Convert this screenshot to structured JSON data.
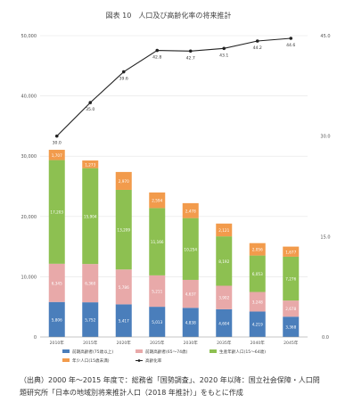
{
  "chart_data": {
    "type": "bar",
    "title": "図表 10　人口及び高齢化率の将来推計",
    "categories": [
      "2010年",
      "2015年",
      "2020年",
      "2025年",
      "2030年",
      "2035年",
      "2040年",
      "2045年"
    ],
    "series": [
      {
        "name": "前期高齢者(75歳以上)",
        "color": "#4a7ebb",
        "values": [
          5806,
          5752,
          5417,
          5013,
          4838,
          4604,
          4219,
          3368
        ]
      },
      {
        "name": "前期高齢者(65～74歳)",
        "color": "#e8a9a9",
        "values": [
          6345,
          6360,
          5786,
          5211,
          4637,
          3902,
          3248,
          2678
        ]
      },
      {
        "name": "生産年齢人口(15～64歳)",
        "color": "#8dc051",
        "values": [
          17203,
          15904,
          13209,
          11166,
          10254,
          8192,
          6053,
          7276
        ]
      },
      {
        "name": "年少人口(15歳未満)",
        "color": "#f29b4c",
        "values": [
          1707,
          1273,
          2970,
          2594,
          2478,
          2121,
          2056,
          1677
        ]
      },
      {
        "name": "高齢化率",
        "color": "#222222",
        "type": "line",
        "values": [
          30.0,
          35.0,
          39.6,
          42.8,
          42.7,
          43.1,
          44.2,
          44.6
        ]
      }
    ],
    "ylim_left": [
      0,
      50000
    ],
    "ylim_right": [
      0,
      45
    ],
    "yticks_left": [
      "0",
      "10,000",
      "20,000",
      "30,000",
      "40,000",
      "50,000"
    ],
    "yticks_right": [
      "0.0",
      "15.0",
      "30.0",
      "45.0"
    ],
    "legend": "bottom"
  },
  "source_note": "（出典）2000 年～2015 年度で：総務省「国勢調査」、2020 年以降：国立社会保障・人口問題研究所「日本の地域別将来推計人口（2018 年推計）」をもとに作成"
}
